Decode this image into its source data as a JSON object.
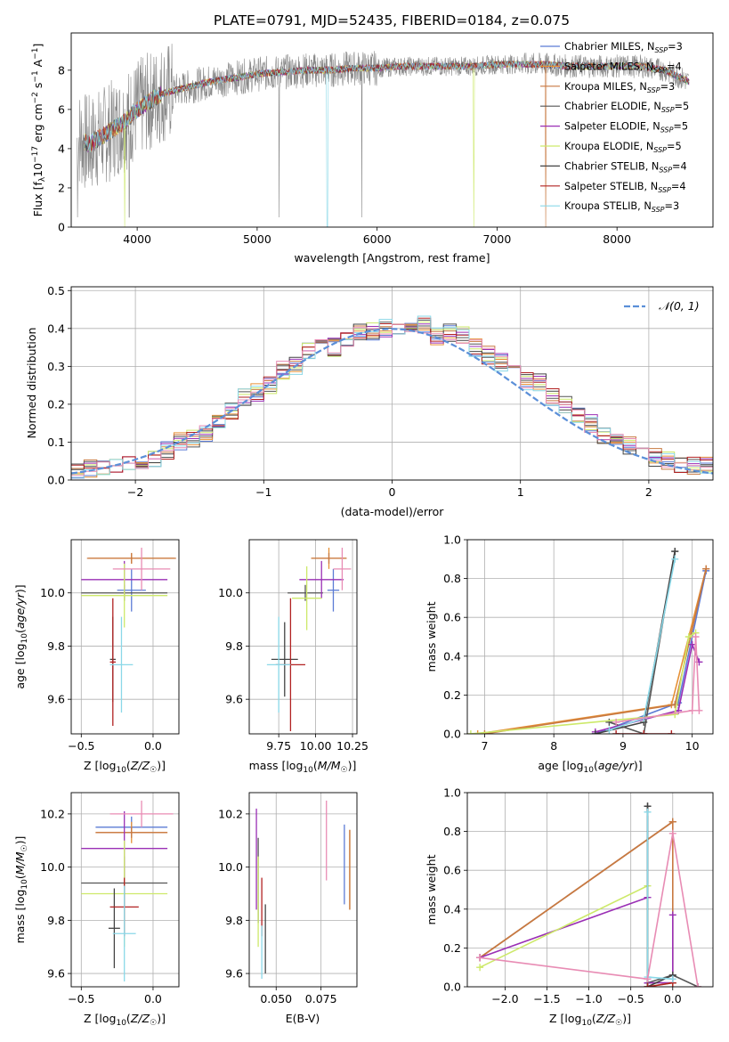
{
  "figure_title": "PLATE=0791, MJD=52435, FIBERID=0184, z=0.075",
  "colors": {
    "Chabrier MILES": "#5b7bd5",
    "Salpeter MILES": "#e69138",
    "Kroupa MILES": "#c87941",
    "Chabrier ELODIE": "#555555",
    "Salpeter ELODIE": "#9a2fb5",
    "Kroupa ELODIE": "#cde96a",
    "Chabrier STELIB": "#444444",
    "Salpeter STELIB": "#b22222",
    "Kroupa STELIB": "#8ad8e8",
    "spectrum": "#888888",
    "normal": "#5b8fd8",
    "pink": "#e88cb4"
  },
  "chart_data": [
    {
      "id": "spectrum",
      "type": "line",
      "title": "PLATE=0791, MJD=52435, FIBERID=0184, z=0.075",
      "xlabel": "wavelength [Angstrom, rest frame]",
      "ylabel": "Flux [f_λ 10^-17 erg cm^-2 s^-1 A^-1]",
      "xlim": [
        3450,
        8800
      ],
      "ylim": [
        0,
        9.9
      ],
      "xticks": [
        4000,
        5000,
        6000,
        7000,
        8000
      ],
      "yticks": [
        0,
        2,
        4,
        6,
        8
      ],
      "grid": false,
      "legend_placement": "right",
      "legend": [
        {
          "label": "Chabrier MILES, N",
          "sub": "SSP",
          "eq": "=3"
        },
        {
          "label": "Salpeter MILES, N",
          "sub": "SSP",
          "eq": "=4"
        },
        {
          "label": "Kroupa MILES, N",
          "sub": "SSP",
          "eq": "=3"
        },
        {
          "label": "Chabrier ELODIE, N",
          "sub": "SSP",
          "eq": "=5"
        },
        {
          "label": "Salpeter ELODIE, N",
          "sub": "SSP",
          "eq": "=5"
        },
        {
          "label": "Kroupa ELODIE, N",
          "sub": "SSP",
          "eq": "=5"
        },
        {
          "label": "Chabrier STELIB, N",
          "sub": "SSP",
          "eq": "=4"
        },
        {
          "label": "Salpeter STELIB, N",
          "sub": "SSP",
          "eq": "=4"
        },
        {
          "label": "Kroupa STELIB, N",
          "sub": "SSP",
          "eq": "=3"
        }
      ],
      "continuum": {
        "x": [
          3500,
          3600,
          3700,
          3800,
          3900,
          4000,
          4100,
          4200,
          4400,
          4600,
          4800,
          5000,
          5200,
          5400,
          5600,
          5800,
          6000,
          6200,
          6400,
          6600,
          6800,
          7000,
          7200,
          7400,
          7600,
          7800,
          8000,
          8200,
          8400,
          8600
        ],
        "y": [
          4.6,
          4.2,
          4.6,
          5.0,
          5.4,
          6.0,
          6.4,
          6.8,
          7.1,
          7.4,
          7.6,
          7.8,
          7.9,
          8.0,
          8.0,
          8.1,
          8.1,
          8.2,
          8.2,
          8.2,
          8.2,
          8.3,
          8.3,
          8.3,
          8.2,
          8.2,
          8.2,
          8.2,
          8.0,
          7.4
        ]
      }
    },
    {
      "id": "residuals",
      "type": "bar",
      "xlabel": "(data-model)/error",
      "ylabel": "Normed distribution",
      "xlim": [
        -2.5,
        2.5
      ],
      "ylim": [
        0,
        0.51
      ],
      "xticks": [
        -2,
        -1,
        0,
        1,
        2
      ],
      "yticks": [
        0.0,
        0.1,
        0.2,
        0.3,
        0.4,
        0.5
      ],
      "grid": true,
      "legend_placement": "top-right",
      "legend": "𝒩(0, 1)",
      "bin_width": 0.1,
      "centers": [
        -2.45,
        -2.35,
        -2.25,
        -2.15,
        -2.05,
        -1.95,
        -1.85,
        -1.75,
        -1.65,
        -1.55,
        -1.45,
        -1.35,
        -1.25,
        -1.15,
        -1.05,
        -0.95,
        -0.85,
        -0.75,
        -0.65,
        -0.55,
        -0.45,
        -0.35,
        -0.25,
        -0.15,
        -0.05,
        0.05,
        0.15,
        0.25,
        0.35,
        0.45,
        0.55,
        0.65,
        0.75,
        0.85,
        0.95,
        1.05,
        1.15,
        1.25,
        1.35,
        1.45,
        1.55,
        1.65,
        1.75,
        1.85,
        1.95,
        2.05,
        2.15,
        2.25,
        2.35,
        2.45
      ],
      "mean_values": [
        0.02,
        0.03,
        0.03,
        0.04,
        0.05,
        0.05,
        0.06,
        0.08,
        0.1,
        0.11,
        0.12,
        0.16,
        0.18,
        0.22,
        0.23,
        0.25,
        0.29,
        0.3,
        0.34,
        0.38,
        0.35,
        0.37,
        0.39,
        0.39,
        0.4,
        0.4,
        0.39,
        0.41,
        0.38,
        0.39,
        0.38,
        0.35,
        0.33,
        0.31,
        0.28,
        0.26,
        0.26,
        0.22,
        0.2,
        0.17,
        0.15,
        0.12,
        0.1,
        0.09,
        0.07,
        0.06,
        0.05,
        0.04,
        0.04,
        0.04
      ]
    },
    {
      "id": "z-age",
      "type": "scatter",
      "xlabel": "Z [log10(Z/Z☉)]",
      "ylabel": "age [log10(age/yr)]",
      "xlim": [
        -0.57,
        0.18
      ],
      "ylim": [
        9.47,
        10.2
      ],
      "xticks": [
        -0.5,
        0.0
      ],
      "yticks": [
        9.6,
        9.8,
        10.0
      ],
      "grid": true,
      "points": [
        {
          "model": "Chabrier MILES",
          "x": -0.15,
          "xerr": 0.1,
          "y": 10.01,
          "yerr": 0.08
        },
        {
          "model": "Salpeter MILES",
          "x": -0.15,
          "xerr": 0.3,
          "y": 10.13,
          "yerr": 0.02
        },
        {
          "model": "Kroupa MILES",
          "x": -0.15,
          "xerr": 0.31,
          "y": 10.13,
          "yerr": 0.02
        },
        {
          "model": "Chabrier ELODIE",
          "x": -0.2,
          "xerr": 0.3,
          "y": 10.0,
          "yerr": 0.03
        },
        {
          "model": "Salpeter ELODIE",
          "x": -0.2,
          "xerr": 0.3,
          "y": 10.05,
          "yerr": 0.07
        },
        {
          "model": "Kroupa ELODIE",
          "x": -0.2,
          "xerr": 0.3,
          "y": 9.99,
          "yerr": 0.12
        },
        {
          "model": "Chabrier STELIB",
          "x": -0.28,
          "xerr": 0.02,
          "y": 9.75,
          "yerr": 0.16
        },
        {
          "model": "Salpeter STELIB",
          "x": -0.28,
          "xerr": 0.02,
          "y": 9.74,
          "yerr": 0.24
        },
        {
          "model": "Kroupa STELIB",
          "x": -0.22,
          "xerr": 0.08,
          "y": 9.73,
          "yerr": 0.18
        }
      ],
      "extra_points": [
        {
          "color": "pink",
          "x": -0.08,
          "xerr": 0.2,
          "y": 10.09,
          "yerr": 0.08
        }
      ]
    },
    {
      "id": "mass-age",
      "type": "scatter",
      "xlabel": "mass [log10(M/M☉)]",
      "ylabel": "",
      "xlim": [
        9.55,
        10.28
      ],
      "ylim": [
        9.47,
        10.2
      ],
      "xticks": [
        9.75,
        10.0,
        10.25
      ],
      "yticks": [
        9.6,
        9.8,
        10.0
      ],
      "grid": true,
      "points": [
        {
          "model": "Chabrier MILES",
          "x": 10.12,
          "xerr": 0.04,
          "y": 10.01,
          "yerr": 0.08
        },
        {
          "model": "Salpeter MILES",
          "x": 10.09,
          "xerr": 0.12,
          "y": 10.13,
          "yerr": 0.04
        },
        {
          "model": "Kroupa MILES",
          "x": 10.09,
          "xerr": 0.12,
          "y": 10.13,
          "yerr": 0.02
        },
        {
          "model": "Chabrier ELODIE",
          "x": 9.93,
          "xerr": 0.12,
          "y": 10.0,
          "yerr": 0.03
        },
        {
          "model": "Salpeter ELODIE",
          "x": 10.04,
          "xerr": 0.15,
          "y": 10.05,
          "yerr": 0.07
        },
        {
          "model": "Kroupa ELODIE",
          "x": 9.94,
          "xerr": 0.1,
          "y": 9.98,
          "yerr": 0.12
        },
        {
          "model": "Chabrier STELIB",
          "x": 9.79,
          "xerr": 0.09,
          "y": 9.75,
          "yerr": 0.14
        },
        {
          "model": "Salpeter STELIB",
          "x": 9.83,
          "xerr": 0.1,
          "y": 9.73,
          "yerr": 0.25
        },
        {
          "model": "Kroupa STELIB",
          "x": 9.75,
          "xerr": 0.08,
          "y": 9.73,
          "yerr": 0.18
        }
      ],
      "extra_points": [
        {
          "color": "pink",
          "x": 10.18,
          "xerr": 0.06,
          "y": 10.09,
          "yerr": 0.08
        }
      ]
    },
    {
      "id": "age-weight",
      "type": "line",
      "xlabel": "age [log10(age/yr)]",
      "ylabel": "mass weight",
      "xlim": [
        6.75,
        10.3
      ],
      "ylim": [
        0,
        1.0
      ],
      "xticks": [
        7,
        8,
        9,
        10
      ],
      "yticks": [
        0.0,
        0.2,
        0.4,
        0.6,
        0.8,
        1.0
      ],
      "grid": true,
      "series": [
        {
          "color": "Chabrier MILES",
          "x": [
            8.6,
            9.8,
            10.2
          ],
          "y": [
            0.0,
            0.16,
            0.84
          ]
        },
        {
          "color": "Salpeter MILES",
          "x": [
            6.9,
            9.7,
            10.2
          ],
          "y": [
            0.0,
            0.15,
            0.85
          ]
        },
        {
          "color": "Kroupa MILES",
          "x": [
            7.0,
            9.75,
            10.2
          ],
          "y": [
            0.0,
            0.15,
            0.85
          ]
        },
        {
          "color": "Chabrier ELODIE",
          "x": [
            8.8,
            9.3,
            9.75
          ],
          "y": [
            0.06,
            0.0,
            0.94
          ]
        },
        {
          "color": "Salpeter ELODIE",
          "x": [
            8.6,
            9.8,
            10.0,
            10.1
          ],
          "y": [
            0.01,
            0.12,
            0.46,
            0.37
          ]
        },
        {
          "color": "Kroupa ELODIE",
          "x": [
            6.8,
            9.75,
            9.95,
            10.05
          ],
          "y": [
            0.0,
            0.1,
            0.5,
            0.52
          ]
        },
        {
          "color": "Chabrier STELIB",
          "x": [
            8.6,
            9.3,
            9.75
          ],
          "y": [
            0.0,
            0.06,
            0.94
          ]
        },
        {
          "color": "Salpeter STELIB",
          "x": [
            8.9,
            9.3,
            9.7
          ],
          "y": [
            0.0,
            0.0,
            0.0
          ]
        },
        {
          "color": "Kroupa STELIB",
          "x": [
            8.8,
            9.3,
            9.75
          ],
          "y": [
            0.02,
            0.08,
            0.9
          ]
        },
        {
          "color": "pink",
          "x": [
            8.9,
            10.0,
            10.05,
            10.1
          ],
          "y": [
            0.06,
            0.12,
            0.5,
            0.12
          ]
        }
      ]
    },
    {
      "id": "z-mass",
      "type": "scatter",
      "xlabel": "Z [log10(Z/Z☉)]",
      "ylabel": "mass [log10(M/M☉)]",
      "xlim": [
        -0.57,
        0.18
      ],
      "ylim": [
        9.55,
        10.28
      ],
      "xticks": [
        -0.5,
        0.0
      ],
      "yticks": [
        9.6,
        9.8,
        10.0,
        10.2
      ],
      "grid": true,
      "points": [
        {
          "model": "Chabrier MILES",
          "x": -0.15,
          "xerr": 0.25,
          "y": 10.15,
          "yerr": 0.04
        },
        {
          "model": "Salpeter MILES",
          "x": -0.15,
          "xerr": 0.25,
          "y": 10.13,
          "yerr": 0.04
        },
        {
          "model": "Kroupa MILES",
          "x": -0.15,
          "xerr": 0.25,
          "y": 10.13,
          "yerr": 0.02
        },
        {
          "model": "Chabrier ELODIE",
          "x": -0.2,
          "xerr": 0.3,
          "y": 9.94,
          "yerr": 0.1
        },
        {
          "model": "Salpeter ELODIE",
          "x": -0.2,
          "xerr": 0.3,
          "y": 10.07,
          "yerr": 0.14
        },
        {
          "model": "Kroupa ELODIE",
          "x": -0.2,
          "xerr": 0.3,
          "y": 9.9,
          "yerr": 0.2
        },
        {
          "model": "Chabrier STELIB",
          "x": -0.27,
          "xerr": 0.04,
          "y": 9.77,
          "yerr": 0.15
        },
        {
          "model": "Salpeter STELIB",
          "x": -0.2,
          "xerr": 0.1,
          "y": 9.85,
          "yerr": 0.11
        },
        {
          "model": "Kroupa STELIB",
          "x": -0.2,
          "xerr": 0.08,
          "y": 9.75,
          "yerr": 0.18
        }
      ],
      "extra_points": [
        {
          "color": "pink",
          "x": -0.08,
          "xerr": 0.22,
          "y": 10.2,
          "yerr": 0.05
        }
      ]
    },
    {
      "id": "ebv-mass",
      "type": "scatter",
      "xlabel": "E(B-V)",
      "ylabel": "",
      "xlim": [
        0.035,
        0.095
      ],
      "ylim": [
        9.55,
        10.28
      ],
      "xticks": [
        0.05,
        0.075
      ],
      "yticks": [
        9.6,
        9.8,
        10.0,
        10.2
      ],
      "grid": true,
      "points": [
        {
          "model": "Chabrier MILES",
          "x": 0.088,
          "xerr": 0,
          "y": 10.01,
          "yerr": 0.15
        },
        {
          "model": "Salpeter MILES",
          "x": 0.091,
          "xerr": 0,
          "y": 9.99,
          "yerr": 0.15
        },
        {
          "model": "Kroupa MILES",
          "x": 0.091,
          "xerr": 0,
          "y": 9.99,
          "yerr": 0.15
        },
        {
          "model": "Chabrier ELODIE",
          "x": 0.04,
          "xerr": 0,
          "y": 9.95,
          "yerr": 0.16
        },
        {
          "model": "Salpeter ELODIE",
          "x": 0.039,
          "xerr": 0,
          "y": 10.03,
          "yerr": 0.19
        },
        {
          "model": "Kroupa ELODIE",
          "x": 0.04,
          "xerr": 0,
          "y": 9.87,
          "yerr": 0.17
        },
        {
          "model": "Chabrier STELIB",
          "x": 0.044,
          "xerr": 0,
          "y": 9.73,
          "yerr": 0.13
        },
        {
          "model": "Salpeter STELIB",
          "x": 0.042,
          "xerr": 0,
          "y": 9.85,
          "yerr": 0.11
        },
        {
          "model": "Kroupa STELIB",
          "x": 0.042,
          "xerr": 0,
          "y": 9.68,
          "yerr": 0.1
        }
      ],
      "extra_points": [
        {
          "color": "pink",
          "x": 0.078,
          "xerr": 0,
          "y": 10.1,
          "yerr": 0.15
        }
      ]
    },
    {
      "id": "z-weight",
      "type": "line",
      "xlabel": "Z [log10(Z/Z☉)]",
      "ylabel": "mass weight",
      "xlim": [
        -2.45,
        0.48
      ],
      "ylim": [
        0,
        1.0
      ],
      "xticks": [
        -2.0,
        -1.5,
        -1.0,
        -0.5,
        0.0
      ],
      "yticks": [
        0.0,
        0.2,
        0.4,
        0.6,
        0.8,
        1.0
      ],
      "grid": true,
      "series": [
        {
          "color": "Chabrier MILES",
          "x": [
            -2.3,
            0.0
          ],
          "y": [
            0.15,
            0.85
          ]
        },
        {
          "color": "Salpeter MILES",
          "x": [
            -2.3,
            0.0
          ],
          "y": [
            0.15,
            0.85
          ]
        },
        {
          "color": "Kroupa MILES",
          "x": [
            -2.3,
            0.0,
            0.0
          ],
          "y": [
            0.15,
            0.85,
            0.02
          ]
        },
        {
          "color": "Chabrier ELODIE",
          "x": [
            -0.3,
            -0.3,
            0.0,
            0.3
          ],
          "y": [
            0.93,
            0.02,
            0.06,
            0.0
          ]
        },
        {
          "color": "Salpeter ELODIE",
          "x": [
            -2.3,
            -0.3,
            -0.3,
            0.0,
            0.0
          ],
          "y": [
            0.15,
            0.46,
            0.02,
            0.02,
            0.37
          ]
        },
        {
          "color": "Kroupa ELODIE",
          "x": [
            -2.3,
            -0.3,
            -0.3,
            0.0
          ],
          "y": [
            0.1,
            0.52,
            0.0,
            0.02
          ]
        },
        {
          "color": "Chabrier STELIB",
          "x": [
            -0.3,
            -0.3,
            0.0
          ],
          "y": [
            0.93,
            0.0,
            0.06
          ]
        },
        {
          "color": "Salpeter STELIB",
          "x": [
            -0.3,
            0.0
          ],
          "y": [
            0.0,
            0.02
          ]
        },
        {
          "color": "Kroupa STELIB",
          "x": [
            -0.3,
            -0.3,
            0.0
          ],
          "y": [
            0.9,
            0.05,
            0.04
          ]
        },
        {
          "color": "pink",
          "x": [
            -2.3,
            -0.3,
            0.0,
            0.3
          ],
          "y": [
            0.15,
            0.04,
            0.79,
            0.0
          ]
        }
      ]
    }
  ]
}
